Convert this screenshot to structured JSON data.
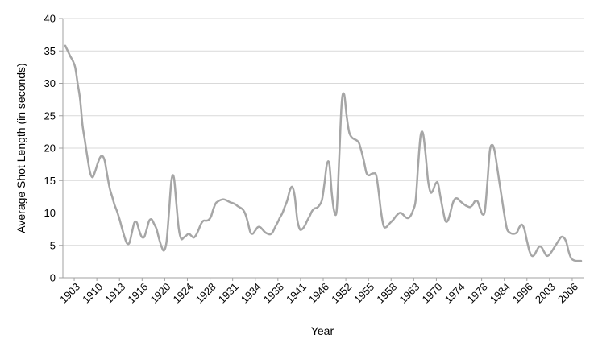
{
  "chart_data": {
    "type": "line",
    "title": "",
    "xlabel": "Year",
    "ylabel": "Average Shot Length (in seconds)",
    "ylim": [
      0,
      40
    ],
    "yticks": [
      0,
      5,
      10,
      15,
      20,
      25,
      30,
      35,
      40
    ],
    "grid": "horizontal",
    "legend": "none",
    "line_color": "#a6a6a6",
    "x_tick_labels": [
      "1903",
      "1910",
      "1913",
      "1916",
      "1920",
      "1924",
      "1928",
      "1931",
      "1934",
      "1938",
      "1941",
      "1946",
      "1952",
      "1955",
      "1958",
      "1963",
      "1970",
      "1974",
      "1978",
      "1984",
      "1996",
      "2003",
      "2006"
    ],
    "series": [
      {
        "values": [
          35.8,
          35.0,
          34.2,
          33.5,
          32.5,
          30.0,
          27.5,
          23.5,
          21.0,
          18.5,
          16.3,
          15.5,
          16.3,
          17.5,
          18.5,
          18.8,
          18.0,
          15.8,
          13.8,
          12.5,
          11.2,
          10.2,
          9.0,
          7.6,
          6.3,
          5.3,
          5.4,
          7.0,
          8.5,
          8.5,
          7.2,
          6.3,
          6.3,
          7.5,
          8.8,
          9.0,
          8.3,
          7.5,
          6.0,
          4.8,
          4.2,
          5.5,
          10.0,
          15.0,
          15.5,
          11.5,
          7.5,
          6.0,
          6.2,
          6.5,
          6.8,
          6.5,
          6.2,
          6.6,
          7.4,
          8.3,
          8.8,
          8.8,
          8.9,
          9.4,
          10.6,
          11.5,
          11.8,
          12.0,
          12.1,
          12.0,
          11.8,
          11.6,
          11.5,
          11.3,
          11.0,
          10.8,
          10.5,
          9.8,
          8.5,
          7.0,
          6.8,
          7.3,
          7.8,
          7.8,
          7.4,
          7.0,
          6.8,
          6.7,
          7.0,
          7.8,
          8.5,
          9.3,
          10.0,
          11.0,
          12.0,
          13.5,
          14.0,
          12.5,
          9.0,
          7.5,
          7.5,
          8.0,
          8.8,
          9.5,
          10.3,
          10.7,
          10.8,
          11.2,
          12.0,
          14.5,
          17.5,
          17.5,
          13.0,
          10.2,
          10.5,
          18.5,
          27.0,
          28.3,
          25.0,
          22.5,
          21.7,
          21.4,
          21.2,
          20.8,
          19.5,
          18.0,
          16.2,
          15.8,
          16.0,
          16.1,
          15.8,
          13.2,
          10.0,
          8.0,
          7.8,
          8.2,
          8.6,
          9.0,
          9.5,
          9.9,
          10.0,
          9.7,
          9.3,
          9.2,
          9.6,
          10.5,
          12.0,
          17.5,
          22.0,
          22.2,
          19.0,
          15.0,
          13.2,
          13.5,
          14.5,
          14.6,
          12.5,
          10.5,
          8.8,
          8.8,
          10.0,
          11.5,
          12.2,
          12.2,
          11.8,
          11.5,
          11.2,
          11.0,
          10.9,
          11.2,
          11.8,
          11.8,
          10.8,
          9.8,
          10.3,
          14.5,
          19.5,
          20.5,
          19.5,
          17.0,
          14.5,
          12.0,
          9.5,
          7.5,
          7.0,
          6.8,
          6.8,
          7.0,
          7.8,
          8.2,
          7.5,
          5.8,
          4.2,
          3.4,
          3.5,
          4.2,
          4.8,
          4.7,
          4.0,
          3.4,
          3.5,
          4.0,
          4.6,
          5.2,
          5.8,
          6.3,
          6.2,
          5.5,
          4.0,
          3.0,
          2.7,
          2.6,
          2.6,
          2.6
        ]
      }
    ]
  }
}
